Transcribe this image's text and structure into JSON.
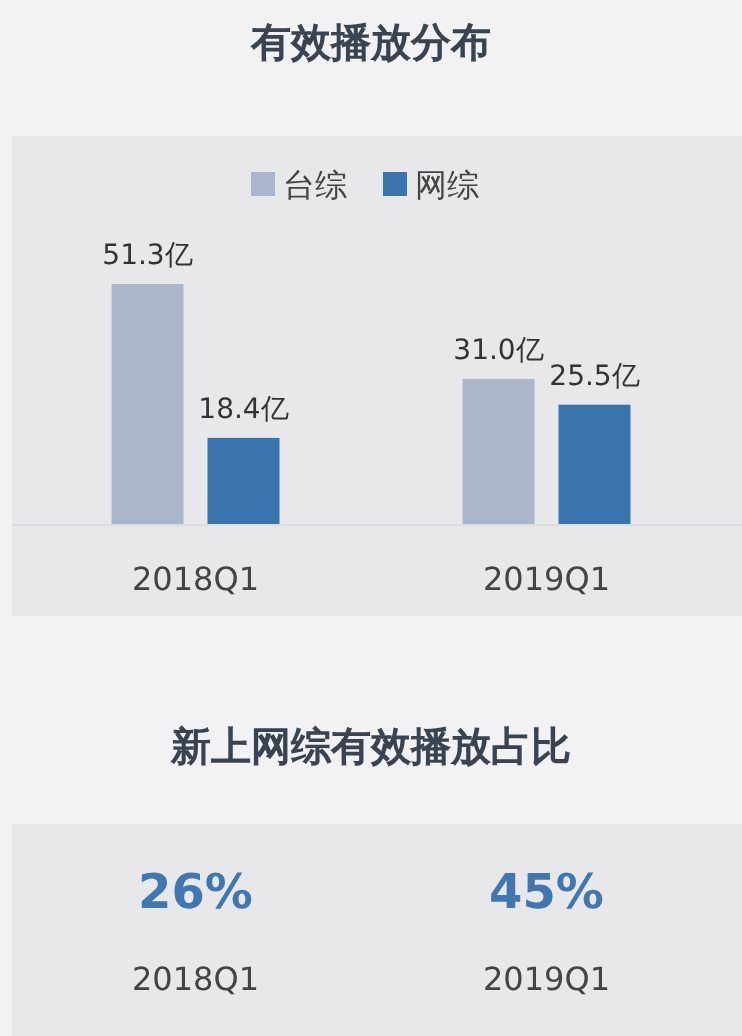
{
  "chart_data": [
    {
      "type": "bar",
      "title": "有效播放分布",
      "categories": [
        "2018Q1",
        "2019Q1"
      ],
      "legend": "top",
      "series": [
        {
          "name": "台综",
          "color": "#a9b6cb",
          "values": [
            51.3,
            31.0
          ],
          "value_labels": [
            "51.3亿",
            "31.0亿"
          ]
        },
        {
          "name": "网综",
          "color": "#3a74ad",
          "values": [
            18.4,
            25.5
          ],
          "value_labels": [
            "18.4亿",
            "25.5亿"
          ]
        }
      ]
    },
    {
      "type": "other",
      "title": "新上网综有效播放占比",
      "categories": [
        "2018Q1",
        "2019Q1"
      ],
      "value_labels": [
        "26%",
        "45%"
      ]
    }
  ]
}
